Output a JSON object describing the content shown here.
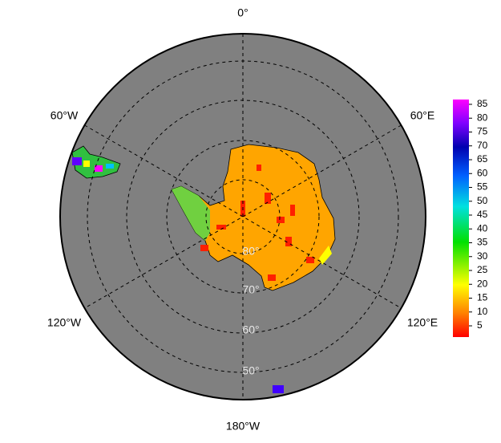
{
  "map": {
    "longitude_labels": [
      "0°",
      "60°E",
      "120°E",
      "180°W",
      "120°W",
      "60°W"
    ],
    "latitude_labels": [
      "80°",
      "70°",
      "60°",
      "50°"
    ],
    "colorbar": {
      "ticks": [
        5,
        10,
        15,
        20,
        25,
        30,
        35,
        40,
        45,
        50,
        55,
        60,
        65,
        70,
        75,
        80,
        85
      ]
    }
  }
}
